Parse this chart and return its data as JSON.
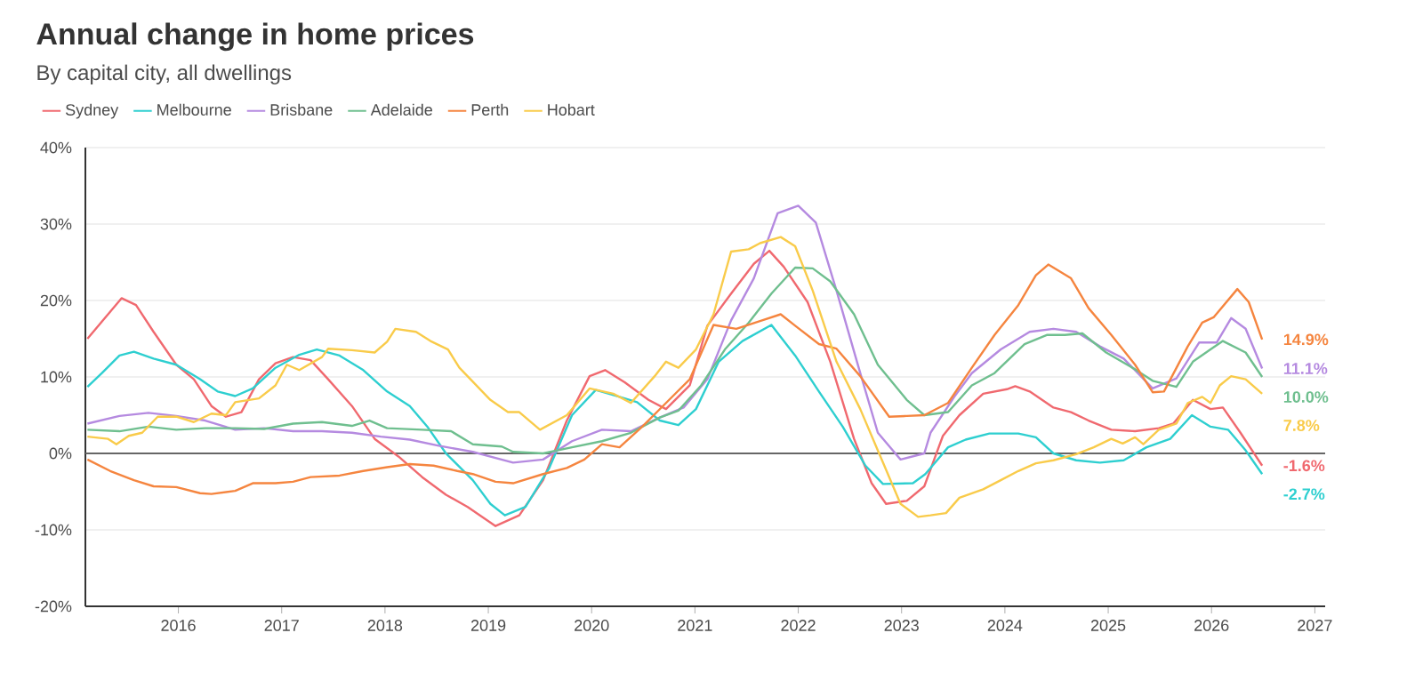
{
  "chart_data": {
    "type": "line",
    "title": "Annual change in home prices",
    "subtitle": "By capital city, all dwellings",
    "xlim": [
      2015.1,
      2027.1
    ],
    "xticks": [
      2016,
      2017,
      2018,
      2019,
      2020,
      2021,
      2022,
      2023,
      2024,
      2025,
      2026,
      2027
    ],
    "ylim": [
      -20,
      40
    ],
    "yticks": [
      {
        "value": -20,
        "label": "-20%"
      },
      {
        "value": -10,
        "label": "-10%"
      },
      {
        "value": 0,
        "label": "0%"
      },
      {
        "value": 10,
        "label": "10%"
      },
      {
        "value": 20,
        "label": "20%"
      },
      {
        "value": 30,
        "label": "30%"
      },
      {
        "value": 40,
        "label": "40%"
      }
    ],
    "grid": "y",
    "legend": "top left",
    "ref_lines": [
      {
        "axis": "y",
        "value": 0,
        "color": "#666666"
      }
    ],
    "series": [
      {
        "name": "Sydney",
        "color": "#f0696f",
        "x": [
          2015.12,
          2015.45,
          2015.59,
          2015.76,
          2015.98,
          2016.15,
          2016.32,
          2016.46,
          2016.61,
          2016.78,
          2016.94,
          2017.11,
          2017.28,
          2017.45,
          2017.68,
          2017.9,
          2018.13,
          2018.36,
          2018.59,
          2018.8,
          2019.07,
          2019.3,
          2019.53,
          2019.76,
          2019.98,
          2020.13,
          2020.32,
          2020.55,
          2020.72,
          2020.95,
          2021.12,
          2021.35,
          2021.57,
          2021.72,
          2021.86,
          2022.09,
          2022.31,
          2022.54,
          2022.71,
          2022.85,
          2023.05,
          2023.22,
          2023.4,
          2023.56,
          2023.79,
          2024.02,
          2024.1,
          2024.24,
          2024.47,
          2024.64,
          2024.81,
          2025.03,
          2025.26,
          2025.49,
          2025.63,
          2025.82,
          2025.99,
          2026.11,
          2026.28,
          2026.49
        ],
        "values": [
          15.0,
          20.3,
          19.4,
          15.9,
          11.6,
          9.7,
          6.2,
          4.8,
          5.4,
          9.7,
          11.8,
          12.6,
          12.2,
          9.7,
          6.2,
          1.9,
          -0.4,
          -3.1,
          -5.4,
          -7.0,
          -9.5,
          -8.1,
          -3.5,
          4.3,
          10.1,
          10.9,
          9.3,
          7.0,
          5.8,
          8.9,
          16.7,
          20.9,
          24.8,
          26.5,
          24.4,
          19.8,
          12.0,
          1.9,
          -3.9,
          -6.6,
          -6.2,
          -4.3,
          2.3,
          5.0,
          7.8,
          8.4,
          8.8,
          8.1,
          6.0,
          5.4,
          4.3,
          3.1,
          2.9,
          3.3,
          3.9,
          7.0,
          5.8,
          6.0,
          2.7,
          -1.6
        ],
        "value_labels": [
          null,
          null,
          null,
          null,
          null,
          null,
          null,
          null,
          null,
          null,
          null,
          null,
          null,
          null,
          null,
          null,
          null,
          null,
          null,
          null,
          null,
          null,
          null,
          null,
          null,
          null,
          null,
          null,
          null,
          null,
          null,
          null,
          null,
          null,
          null,
          null,
          null,
          null,
          null,
          null,
          null,
          null,
          null,
          null,
          null,
          null,
          null,
          null,
          null,
          null,
          null,
          null,
          null,
          null,
          null,
          null,
          null,
          null,
          null,
          "-1.6%"
        ]
      },
      {
        "name": "Melbourne",
        "color": "#2ecfd0",
        "x": [
          2015.12,
          2015.26,
          2015.43,
          2015.57,
          2015.76,
          2015.98,
          2016.21,
          2016.38,
          2016.55,
          2016.72,
          2016.94,
          2017.17,
          2017.34,
          2017.56,
          2017.79,
          2018.02,
          2018.24,
          2018.41,
          2018.59,
          2018.85,
          2019.02,
          2019.16,
          2019.36,
          2019.59,
          2019.81,
          2020.04,
          2020.27,
          2020.44,
          2020.66,
          2020.84,
          2021.01,
          2021.23,
          2021.46,
          2021.74,
          2021.97,
          2022.2,
          2022.43,
          2022.65,
          2022.82,
          2023.11,
          2023.23,
          2023.45,
          2023.62,
          2023.85,
          2024.13,
          2024.3,
          2024.47,
          2024.69,
          2024.92,
          2025.15,
          2025.37,
          2025.6,
          2025.81,
          2025.99,
          2026.16,
          2026.33,
          2026.49
        ],
        "values": [
          8.7,
          10.5,
          12.8,
          13.3,
          12.4,
          11.6,
          9.7,
          8.1,
          7.5,
          8.5,
          11.2,
          12.9,
          13.6,
          12.8,
          10.9,
          8.1,
          6.2,
          3.5,
          0.0,
          -3.5,
          -6.6,
          -8.1,
          -7.0,
          -1.9,
          5.0,
          8.3,
          7.4,
          6.7,
          4.3,
          3.7,
          5.8,
          12.0,
          14.7,
          16.8,
          12.8,
          8.1,
          3.5,
          -1.6,
          -4.0,
          -3.9,
          -2.7,
          0.8,
          1.8,
          2.6,
          2.6,
          2.1,
          0.0,
          -0.9,
          -1.2,
          -0.9,
          0.8,
          1.9,
          5.0,
          3.5,
          3.1,
          0.4,
          -2.7
        ],
        "value_labels": [
          null,
          null,
          null,
          null,
          null,
          null,
          null,
          null,
          null,
          null,
          null,
          null,
          null,
          null,
          null,
          null,
          null,
          null,
          null,
          null,
          null,
          null,
          null,
          null,
          null,
          null,
          null,
          null,
          null,
          null,
          null,
          null,
          null,
          null,
          null,
          null,
          null,
          null,
          null,
          null,
          null,
          null,
          null,
          null,
          null,
          null,
          null,
          null,
          null,
          null,
          null,
          null,
          null,
          null,
          null,
          null,
          "-2.7%"
        ]
      },
      {
        "name": "Brisbane",
        "color": "#b58ae0",
        "x": [
          2015.12,
          2015.43,
          2015.71,
          2015.98,
          2016.26,
          2016.55,
          2016.83,
          2017.11,
          2017.39,
          2017.68,
          2017.96,
          2018.24,
          2018.52,
          2018.85,
          2019.24,
          2019.53,
          2019.81,
          2020.1,
          2020.38,
          2020.66,
          2020.89,
          2021.12,
          2021.35,
          2021.57,
          2021.8,
          2022.0,
          2022.17,
          2022.37,
          2022.6,
          2022.77,
          2022.99,
          2023.22,
          2023.28,
          2023.51,
          2023.68,
          2023.96,
          2024.24,
          2024.47,
          2024.69,
          2024.92,
          2025.15,
          2025.43,
          2025.66,
          2025.88,
          2026.05,
          2026.19,
          2026.33,
          2026.49
        ],
        "values": [
          3.9,
          4.9,
          5.3,
          4.9,
          4.3,
          3.1,
          3.3,
          2.9,
          2.9,
          2.7,
          2.2,
          1.8,
          1.0,
          0.2,
          -1.2,
          -0.8,
          1.6,
          3.1,
          2.9,
          4.7,
          6.0,
          9.7,
          17.4,
          22.9,
          31.4,
          32.4,
          30.2,
          21.3,
          10.5,
          2.7,
          -0.8,
          0.0,
          2.7,
          7.4,
          10.5,
          13.6,
          15.9,
          16.3,
          15.9,
          14.0,
          12.4,
          8.5,
          9.8,
          14.5,
          14.5,
          17.7,
          16.3,
          11.1
        ],
        "value_labels": [
          null,
          null,
          null,
          null,
          null,
          null,
          null,
          null,
          null,
          null,
          null,
          null,
          null,
          null,
          null,
          null,
          null,
          null,
          null,
          null,
          null,
          null,
          null,
          null,
          null,
          null,
          null,
          null,
          null,
          null,
          null,
          null,
          null,
          null,
          null,
          null,
          null,
          null,
          null,
          null,
          null,
          null,
          null,
          null,
          null,
          null,
          null,
          "11.1%"
        ]
      },
      {
        "name": "Adelaide",
        "color": "#6fbf8f",
        "x": [
          2015.12,
          2015.43,
          2015.71,
          2015.98,
          2016.26,
          2016.55,
          2016.83,
          2017.11,
          2017.39,
          2017.68,
          2017.85,
          2018.02,
          2018.36,
          2018.64,
          2018.85,
          2019.13,
          2019.24,
          2019.53,
          2019.81,
          2020.1,
          2020.38,
          2020.66,
          2020.84,
          2021.06,
          2021.29,
          2021.52,
          2021.74,
          2021.97,
          2022.14,
          2022.31,
          2022.54,
          2022.77,
          2023.05,
          2023.22,
          2023.45,
          2023.68,
          2023.9,
          2024.19,
          2024.41,
          2024.58,
          2024.75,
          2024.98,
          2025.26,
          2025.43,
          2025.66,
          2025.82,
          2025.99,
          2026.11,
          2026.33,
          2026.49
        ],
        "values": [
          3.1,
          2.9,
          3.5,
          3.1,
          3.3,
          3.3,
          3.2,
          3.9,
          4.1,
          3.6,
          4.3,
          3.3,
          3.1,
          2.9,
          1.2,
          0.9,
          0.2,
          0.0,
          0.8,
          1.6,
          2.7,
          4.7,
          5.6,
          8.9,
          13.6,
          17.1,
          20.9,
          24.3,
          24.2,
          22.5,
          18.2,
          11.6,
          7.0,
          5.0,
          5.4,
          8.9,
          10.5,
          14.3,
          15.5,
          15.5,
          15.7,
          13.2,
          11.0,
          9.5,
          8.7,
          12.0,
          13.6,
          14.7,
          13.2,
          10.0
        ],
        "value_labels": [
          null,
          null,
          null,
          null,
          null,
          null,
          null,
          null,
          null,
          null,
          null,
          null,
          null,
          null,
          null,
          null,
          null,
          null,
          null,
          null,
          null,
          null,
          null,
          null,
          null,
          null,
          null,
          null,
          null,
          null,
          null,
          null,
          null,
          null,
          null,
          null,
          null,
          null,
          null,
          null,
          null,
          null,
          null,
          null,
          null,
          null,
          null,
          null,
          null,
          "10.0%"
        ]
      },
      {
        "name": "Perth",
        "color": "#f5853f",
        "x": [
          2015.12,
          2015.34,
          2015.57,
          2015.76,
          2015.98,
          2016.21,
          2016.32,
          2016.55,
          2016.72,
          2016.94,
          2017.11,
          2017.28,
          2017.56,
          2017.79,
          2018.02,
          2018.24,
          2018.47,
          2018.7,
          2018.85,
          2019.07,
          2019.24,
          2019.53,
          2019.76,
          2019.93,
          2020.1,
          2020.27,
          2020.49,
          2020.72,
          2020.95,
          2021.18,
          2021.4,
          2021.63,
          2021.83,
          2021.97,
          2022.2,
          2022.37,
          2022.6,
          2022.88,
          2023.05,
          2023.22,
          2023.45,
          2023.68,
          2023.9,
          2024.13,
          2024.3,
          2024.42,
          2024.64,
          2024.81,
          2025.03,
          2025.26,
          2025.43,
          2025.54,
          2025.77,
          2025.91,
          2026.02,
          2026.25,
          2026.36,
          2026.49
        ],
        "values": [
          -0.8,
          -2.3,
          -3.5,
          -4.3,
          -4.4,
          -5.2,
          -5.3,
          -4.9,
          -3.9,
          -3.9,
          -3.7,
          -3.1,
          -2.9,
          -2.3,
          -1.8,
          -1.4,
          -1.6,
          -2.3,
          -2.7,
          -3.7,
          -3.9,
          -2.7,
          -1.9,
          -0.8,
          1.2,
          0.8,
          3.5,
          6.6,
          9.7,
          16.8,
          16.3,
          17.3,
          18.2,
          16.7,
          14.3,
          13.7,
          10.1,
          4.8,
          4.9,
          5.0,
          6.6,
          11.2,
          15.5,
          19.4,
          23.3,
          24.7,
          22.9,
          19.0,
          15.5,
          11.6,
          8.0,
          8.1,
          14.0,
          17.1,
          17.8,
          21.5,
          19.8,
          14.9
        ],
        "value_labels": [
          null,
          null,
          null,
          null,
          null,
          null,
          null,
          null,
          null,
          null,
          null,
          null,
          null,
          null,
          null,
          null,
          null,
          null,
          null,
          null,
          null,
          null,
          null,
          null,
          null,
          null,
          null,
          null,
          null,
          null,
          null,
          null,
          null,
          null,
          null,
          null,
          null,
          null,
          null,
          null,
          null,
          null,
          null,
          null,
          null,
          null,
          null,
          null,
          null,
          null,
          null,
          null,
          null,
          null,
          null,
          null,
          null,
          "14.9%"
        ]
      },
      {
        "name": "Hobart",
        "color": "#f9cb4a",
        "x": [
          2015.12,
          2015.32,
          2015.4,
          2015.52,
          2015.65,
          2015.8,
          2015.98,
          2016.15,
          2016.32,
          2016.46,
          2016.55,
          2016.78,
          2016.94,
          2017.05,
          2017.17,
          2017.39,
          2017.45,
          2017.68,
          2017.9,
          2018.02,
          2018.1,
          2018.3,
          2018.44,
          2018.61,
          2018.72,
          2019.02,
          2019.19,
          2019.3,
          2019.5,
          2019.76,
          2019.98,
          2020.21,
          2020.38,
          2020.61,
          2020.72,
          2020.84,
          2021.01,
          2021.18,
          2021.35,
          2021.52,
          2021.63,
          2021.83,
          2021.97,
          2022.14,
          2022.37,
          2022.6,
          2022.82,
          2022.99,
          2023.16,
          2023.28,
          2023.43,
          2023.56,
          2023.79,
          2023.96,
          2024.13,
          2024.3,
          2024.47,
          2024.69,
          2024.86,
          2025.03,
          2025.14,
          2025.26,
          2025.34,
          2025.49,
          2025.66,
          2025.77,
          2025.91,
          2025.99,
          2026.08,
          2026.19,
          2026.33,
          2026.49
        ],
        "values": [
          2.2,
          1.9,
          1.2,
          2.3,
          2.7,
          4.8,
          4.8,
          4.1,
          5.2,
          5.0,
          6.7,
          7.2,
          8.9,
          11.6,
          10.9,
          12.6,
          13.7,
          13.5,
          13.2,
          14.6,
          16.3,
          15.9,
          14.7,
          13.6,
          11.2,
          7.0,
          5.4,
          5.4,
          3.1,
          5.0,
          8.5,
          7.8,
          6.6,
          10.1,
          12.0,
          11.2,
          13.6,
          18.2,
          26.4,
          26.7,
          27.5,
          28.3,
          27.1,
          21.3,
          12.0,
          5.8,
          -1.2,
          -6.6,
          -8.3,
          -8.1,
          -7.8,
          -5.8,
          -4.7,
          -3.5,
          -2.3,
          -1.3,
          -0.9,
          -0.1,
          0.8,
          1.9,
          1.3,
          2.1,
          1.2,
          3.1,
          3.9,
          6.6,
          7.4,
          6.6,
          8.9,
          10.1,
          9.7,
          7.8
        ],
        "value_labels": [
          null,
          null,
          null,
          null,
          null,
          null,
          null,
          null,
          null,
          null,
          null,
          null,
          null,
          null,
          null,
          null,
          null,
          null,
          null,
          null,
          null,
          null,
          null,
          null,
          null,
          null,
          null,
          null,
          null,
          null,
          null,
          null,
          null,
          null,
          null,
          null,
          null,
          null,
          null,
          null,
          null,
          null,
          null,
          null,
          null,
          null,
          null,
          null,
          null,
          null,
          null,
          null,
          null,
          null,
          null,
          null,
          null,
          null,
          null,
          null,
          null,
          null,
          null,
          null,
          null,
          null,
          null,
          null,
          null,
          null,
          null,
          "7.8%"
        ]
      }
    ]
  }
}
